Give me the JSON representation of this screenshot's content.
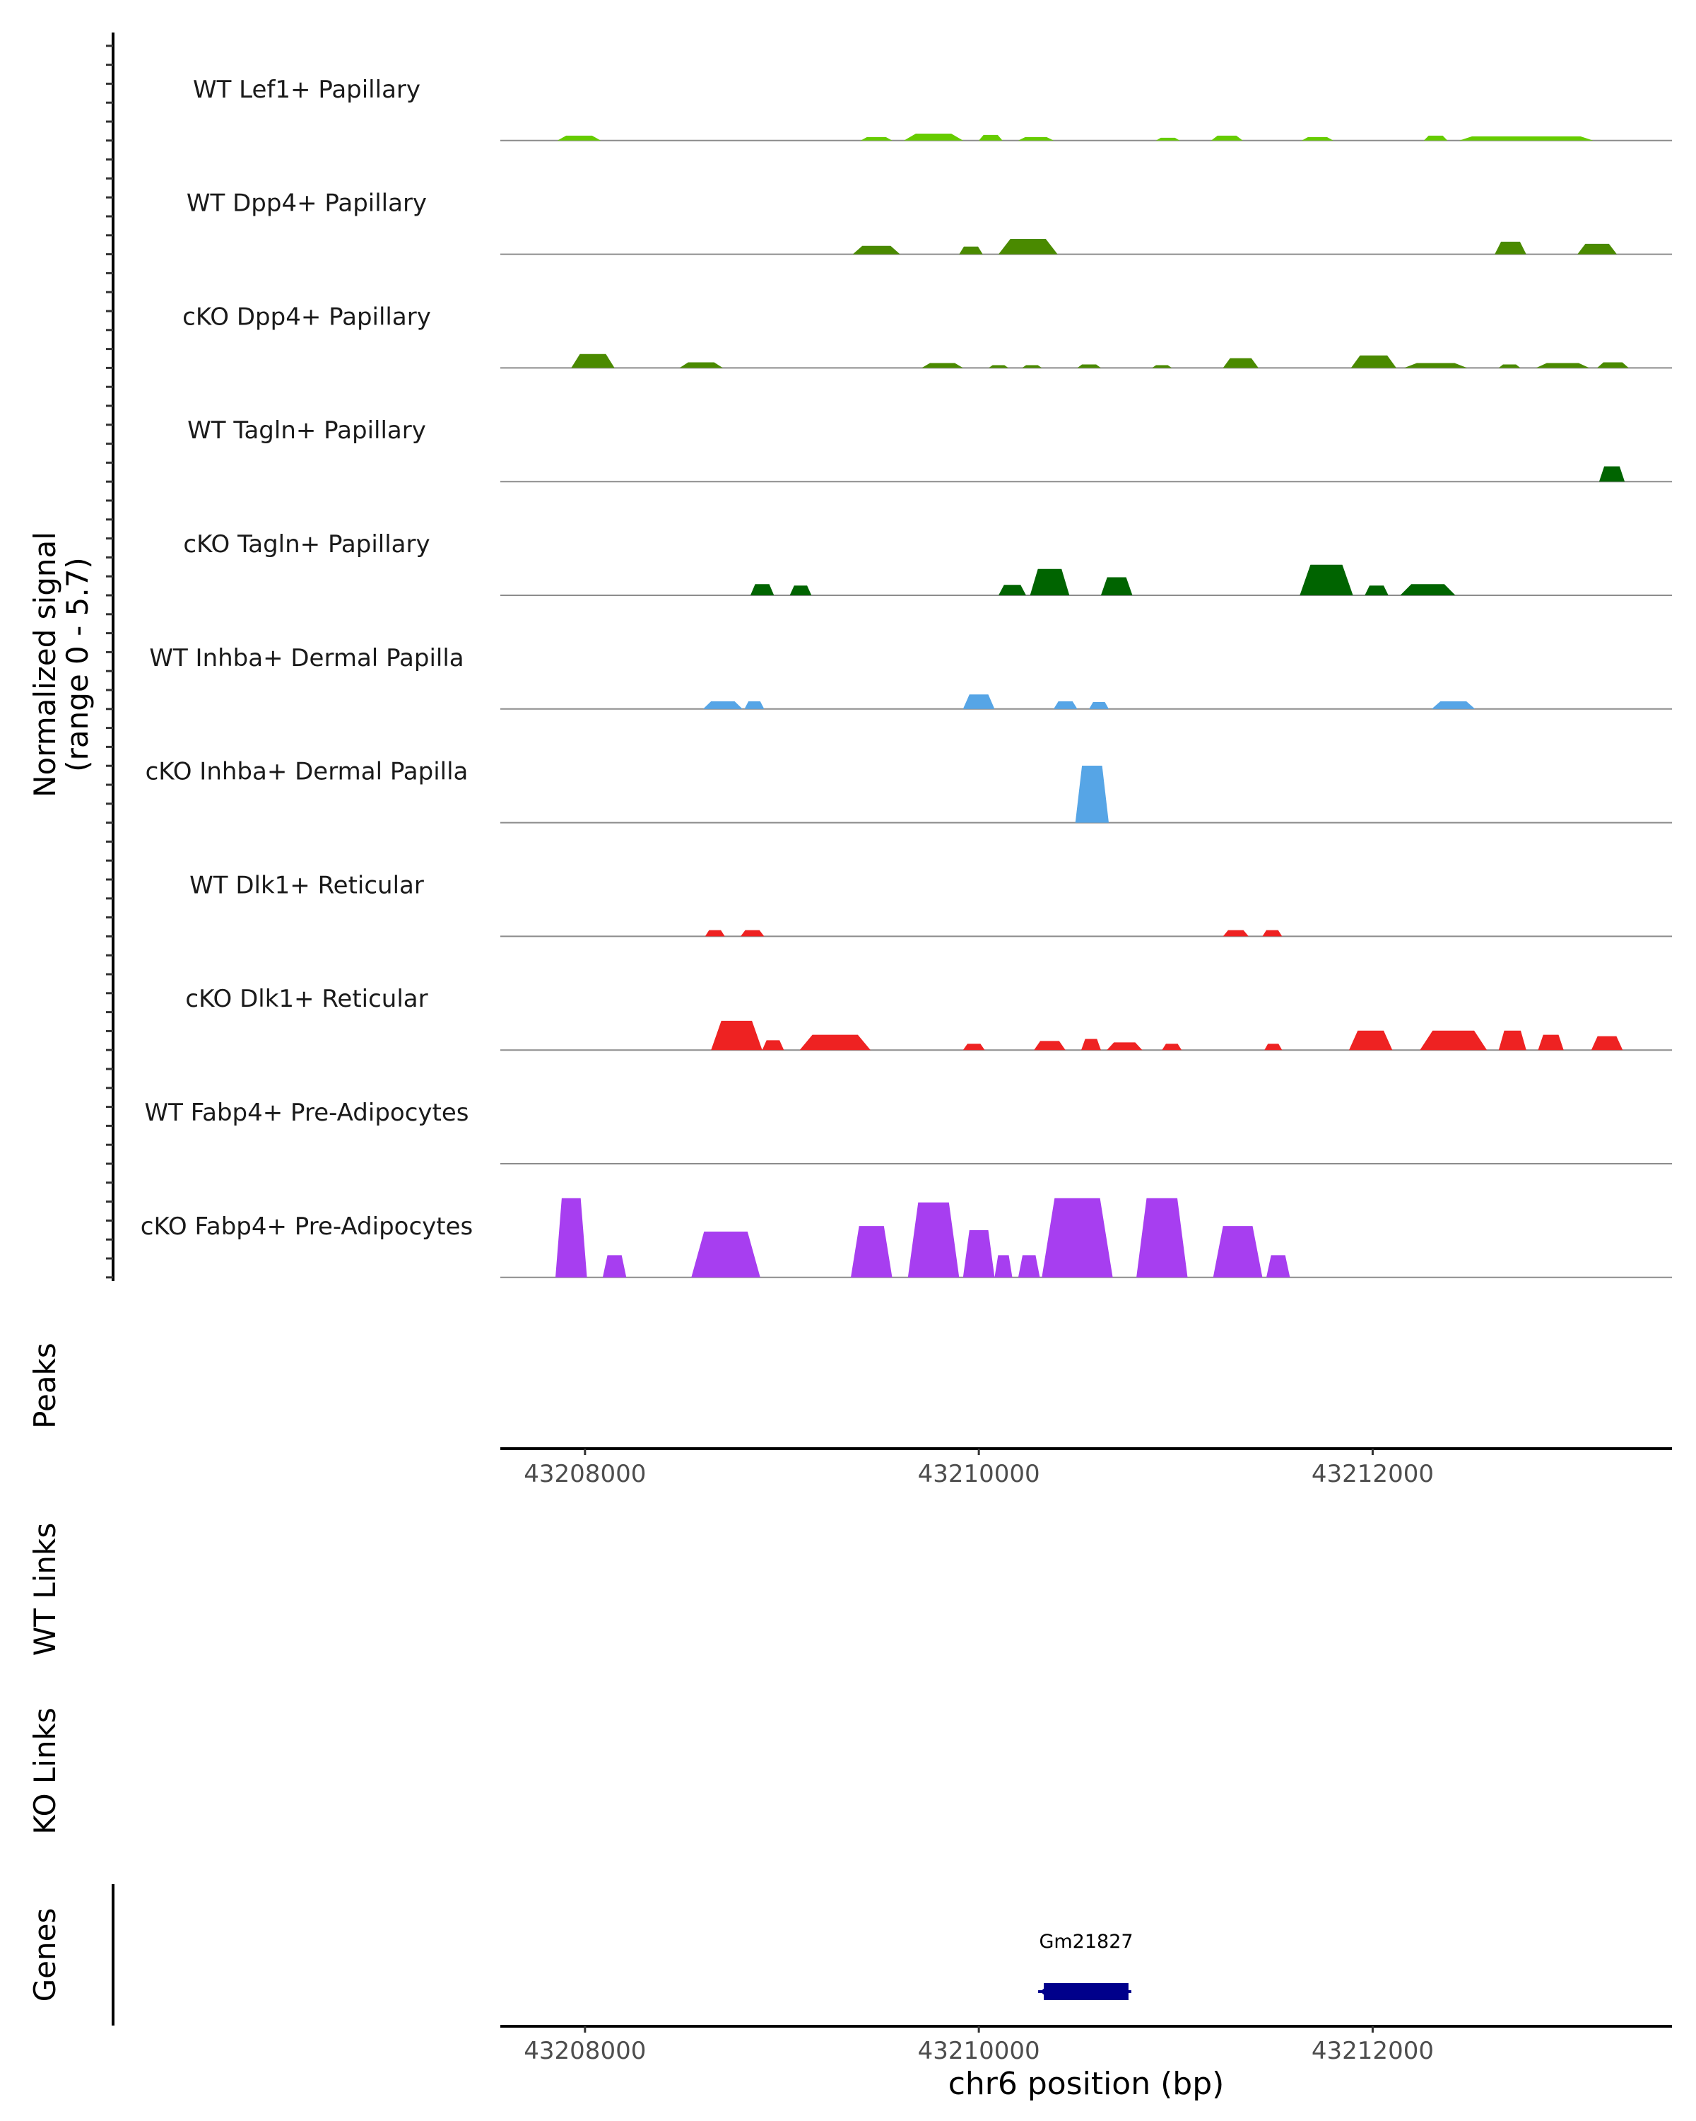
{
  "chart_data": {
    "type": "area",
    "title": "",
    "xlabel": "chr6 position (bp)",
    "xlim": [
      43207570,
      43213520
    ],
    "x_ticks": [
      "43208000",
      "43210000",
      "43212000"
    ],
    "x_tick_values": [
      43208000,
      43210000,
      43212000
    ],
    "coverage": {
      "ylabel_line1": "Normalized signal",
      "ylabel_line2": "(range 0 - 5.7)",
      "ylim": [
        0,
        5.7
      ],
      "tracks": [
        {
          "name": "WT Lef1+ Papillary",
          "color": "#66cc00",
          "regions": [
            [
              43207860,
              43208080,
              0.35
            ],
            [
              43209400,
              43209560,
              0.25
            ],
            [
              43209620,
              43209920,
              0.5
            ],
            [
              43210000,
              43210120,
              0.4
            ],
            [
              43210200,
              43210380,
              0.25
            ],
            [
              43210900,
              43211020,
              0.2
            ],
            [
              43211180,
              43211340,
              0.35
            ],
            [
              43211640,
              43211800,
              0.25
            ],
            [
              43212260,
              43212380,
              0.35
            ],
            [
              43212440,
              43213120,
              0.3
            ]
          ]
        },
        {
          "name": "WT Dpp4+ Papillary",
          "color": "#4a8a00",
          "regions": [
            [
              43209360,
              43209600,
              0.6
            ],
            [
              43209900,
              43210020,
              0.55
            ],
            [
              43210100,
              43210400,
              1.1
            ],
            [
              43212620,
              43212780,
              0.9
            ],
            [
              43213040,
              43213240,
              0.75
            ]
          ]
        },
        {
          "name": "cKO Dpp4+ Papillary",
          "color": "#4a8a00",
          "regions": [
            [
              43207930,
              43208150,
              1.0
            ],
            [
              43208480,
              43208700,
              0.4
            ],
            [
              43209710,
              43209920,
              0.35
            ],
            [
              43210050,
              43210150,
              0.2
            ],
            [
              43210220,
              43210320,
              0.2
            ],
            [
              43210500,
              43210620,
              0.25
            ],
            [
              43210880,
              43210980,
              0.2
            ],
            [
              43211240,
              43211420,
              0.7
            ],
            [
              43211890,
              43212120,
              0.9
            ],
            [
              43212160,
              43212480,
              0.35
            ],
            [
              43212640,
              43212750,
              0.25
            ],
            [
              43212830,
              43213100,
              0.35
            ],
            [
              43213140,
              43213300,
              0.4
            ]
          ]
        },
        {
          "name": "WT Tagln+ Papillary",
          "color": "#006400",
          "regions": [
            [
              43213150,
              43213280,
              1.1
            ]
          ]
        },
        {
          "name": "cKO Tagln+ Papillary",
          "color": "#006400",
          "regions": [
            [
              43208840,
              43208960,
              0.8
            ],
            [
              43209040,
              43209150,
              0.7
            ],
            [
              43210100,
              43210240,
              0.75
            ],
            [
              43210260,
              43210460,
              1.9
            ],
            [
              43210620,
              43210780,
              1.3
            ],
            [
              43211630,
              43211900,
              2.2
            ],
            [
              43211960,
              43212080,
              0.7
            ],
            [
              43212140,
              43212420,
              0.8
            ]
          ]
        },
        {
          "name": "WT Inhba+ Dermal Papilla",
          "color": "#56a5e6",
          "regions": [
            [
              43208600,
              43208800,
              0.55
            ],
            [
              43208810,
              43208910,
              0.55
            ],
            [
              43209920,
              43210080,
              1.05
            ],
            [
              43210380,
              43210500,
              0.55
            ],
            [
              43210560,
              43210660,
              0.5
            ],
            [
              43212300,
              43212520,
              0.55
            ]
          ]
        },
        {
          "name": "cKO Inhba+ Dermal Papilla",
          "color": "#56a5e6",
          "regions": [
            [
              43210490,
              43210660,
              4.1
            ]
          ]
        },
        {
          "name": "WT Dlk1+ Reticular",
          "color": "#ee2222",
          "regions": [
            [
              43208610,
              43208710,
              0.45
            ],
            [
              43208790,
              43208910,
              0.45
            ],
            [
              43211240,
              43211370,
              0.45
            ],
            [
              43211440,
              43211540,
              0.45
            ]
          ]
        },
        {
          "name": "cKO Dlk1+ Reticular",
          "color": "#ee2222",
          "regions": [
            [
              43208640,
              43208900,
              2.1
            ],
            [
              43208900,
              43209010,
              0.7
            ],
            [
              43209090,
              43209450,
              1.1
            ],
            [
              43209920,
              43210030,
              0.45
            ],
            [
              43210280,
              43210440,
              0.65
            ],
            [
              43210520,
              43210620,
              0.8
            ],
            [
              43210650,
              43210830,
              0.55
            ],
            [
              43210930,
              43211030,
              0.45
            ],
            [
              43211450,
              43211540,
              0.45
            ],
            [
              43211880,
              43212100,
              1.4
            ],
            [
              43212240,
              43212580,
              1.4
            ],
            [
              43212640,
              43212780,
              1.4
            ],
            [
              43212840,
              43212970,
              1.1
            ],
            [
              43213110,
              43213270,
              1.0
            ]
          ]
        },
        {
          "name": "WT Fabp4+ Pre-Adipocytes",
          "color": "#a73ef0",
          "regions": []
        },
        {
          "name": "cKO Fabp4+ Pre-Adipocytes",
          "color": "#a73ef0",
          "regions": [
            [
              43207850,
              43208010,
              5.7
            ],
            [
              43208090,
              43208210,
              1.6
            ],
            [
              43208540,
              43208890,
              3.3
            ],
            [
              43209350,
              43209560,
              3.7
            ],
            [
              43209640,
              43209900,
              5.4
            ],
            [
              43209920,
              43210080,
              3.4
            ],
            [
              43210080,
              43210170,
              1.6
            ],
            [
              43210200,
              43210310,
              1.6
            ],
            [
              43210320,
              43210680,
              5.7
            ],
            [
              43210800,
              43211060,
              5.7
            ],
            [
              43211190,
              43211440,
              3.7
            ],
            [
              43211460,
              43211580,
              1.6
            ]
          ]
        }
      ]
    },
    "panels": {
      "peaks_label": "Peaks",
      "wt_links_label": "WT Links",
      "ko_links_label": "KO Links",
      "genes_label": "Genes"
    },
    "genes": [
      {
        "name": "Gm21827",
        "start": 43210330,
        "end": 43210760,
        "strand": "-",
        "color": "#00008b"
      }
    ]
  }
}
